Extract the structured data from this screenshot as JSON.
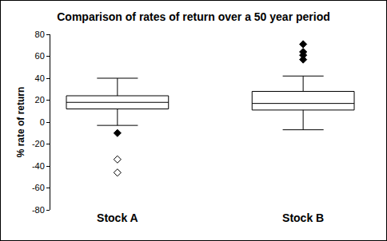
{
  "chart_data": {
    "type": "box",
    "title": "Comparison of rates of return over a 50 year period",
    "y_label": "% rate of return",
    "categories": [
      "Stock A",
      "Stock B"
    ],
    "color": "#000000",
    "grid": false,
    "ylim": [
      -80,
      80
    ],
    "yticks": [
      -80,
      -60,
      -40,
      -20,
      0,
      20,
      40,
      60,
      80
    ],
    "boxes": [
      {
        "name": "Stock A",
        "q1": 12,
        "median": 18,
        "q3": 24,
        "lowerfence": -3,
        "upperfence": 40,
        "outliers": {
          "values": [
            -10
          ],
          "marker": "diamond"
        },
        "extreme_outliers": {
          "values": [
            -34,
            -46
          ],
          "marker": "diamond-open"
        }
      },
      {
        "name": "Stock B",
        "q1": 11,
        "median": 17,
        "q3": 28,
        "lowerfence": -7,
        "upperfence": 42,
        "outliers": {
          "values": [
            57,
            61,
            64,
            71
          ],
          "marker": "diamond"
        }
      }
    ]
  }
}
